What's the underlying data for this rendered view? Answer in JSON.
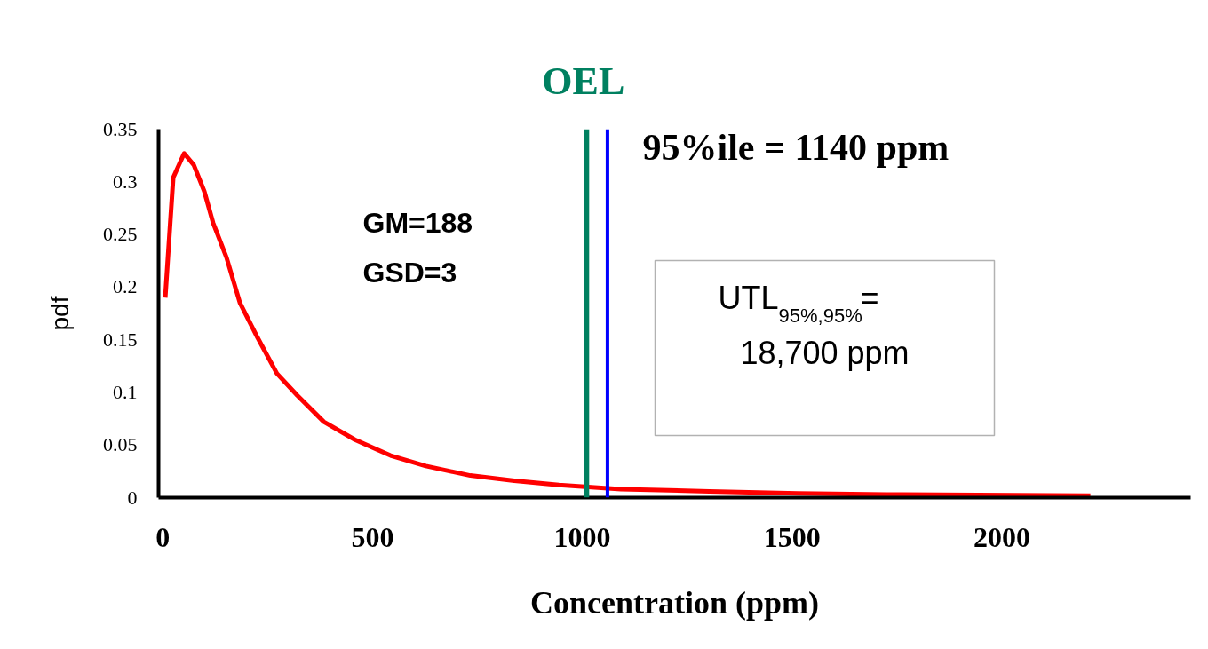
{
  "chart_data": {
    "type": "line",
    "xlabel": "Concentration (ppm)",
    "ylabel": "pdf",
    "series": [
      {
        "color": "#ff0000",
        "x": [
          6,
          25,
          51,
          74,
          99,
          120,
          152,
          184,
          226,
          272,
          321,
          384,
          458,
          543,
          627,
          733,
          838,
          944,
          1092,
          1303,
          1514,
          1725,
          2211
        ],
        "values": [
          0.19,
          0.304,
          0.327,
          0.316,
          0.291,
          0.261,
          0.228,
          0.185,
          0.152,
          0.118,
          0.097,
          0.072,
          0.055,
          0.04,
          0.03,
          0.021,
          0.016,
          0.012,
          0.008,
          0.006,
          0.004,
          0.003,
          0.002
        ]
      }
    ],
    "xlim": [
      -10,
      2450
    ],
    "xticks": [
      0,
      500,
      1000,
      1500,
      2000
    ],
    "ylim": [
      0,
      0.35
    ],
    "yticks": [
      0,
      0.05,
      0.1,
      0.15,
      0.2,
      0.25,
      0.3,
      0.35
    ],
    "ref_lines": [
      {
        "axis": "x",
        "value": 1010,
        "label": "OEL",
        "color": "#008060"
      },
      {
        "axis": "x",
        "value": 1060,
        "color": "#0000ff"
      }
    ],
    "annotations": [
      "GM=188\nGSD=3",
      "UTL$_{95%,95%}$=\n18,700 ppm",
      "95%ile = 1140 ppm"
    ],
    "grid": false,
    "marker": "none",
    "line_style": "solid"
  }
}
